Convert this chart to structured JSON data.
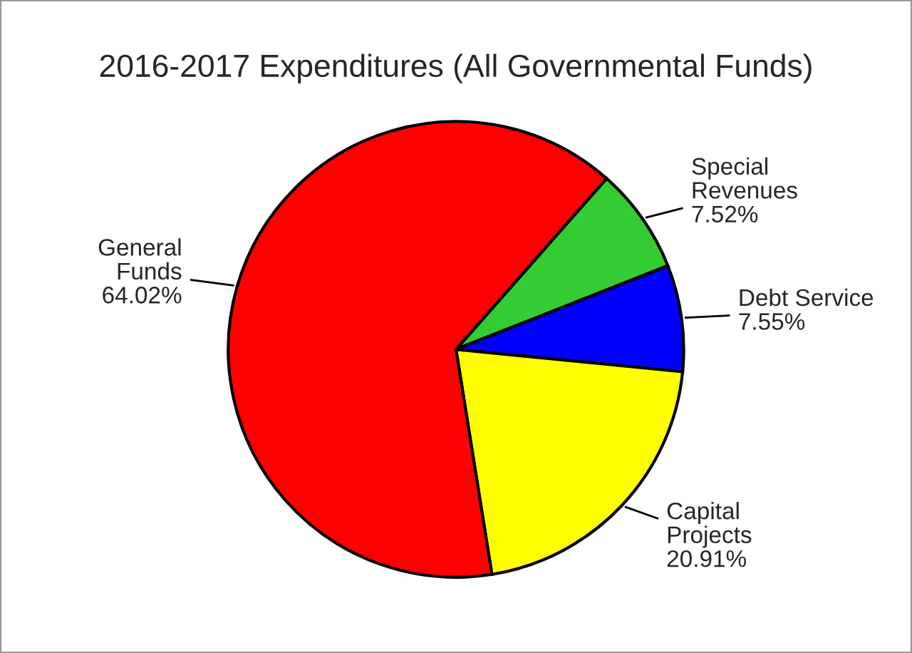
{
  "chart_data": {
    "type": "pie",
    "title": "2016-2017 Expenditures (All Governmental Funds)",
    "categories": [
      "Special\nRevenues",
      "Debt Service",
      "Capital\nProjects",
      "General\nFunds"
    ],
    "values": [
      7.52,
      7.55,
      20.91,
      64.02
    ],
    "colors": [
      "#33cc33",
      "#0000ff",
      "#ffff00",
      "#ff0000"
    ],
    "value_labels": [
      "7.52%",
      "7.55%",
      "20.91%",
      "64.02%"
    ],
    "legend": false
  }
}
